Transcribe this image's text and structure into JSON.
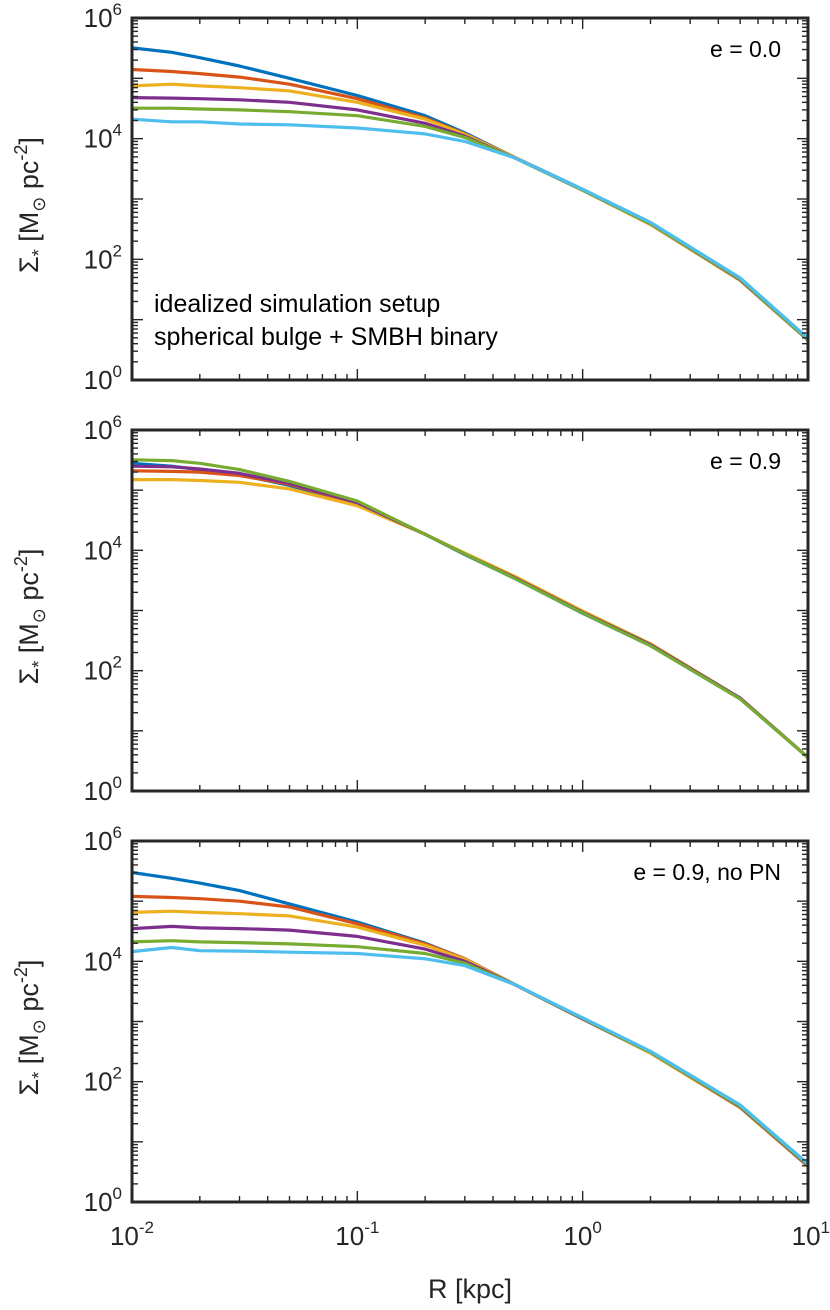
{
  "figure": {
    "xlabel": "R [kpc]",
    "ylabel_symbol": "Σ",
    "ylabel_sub": "*",
    "ylabel_open": " [M",
    "ylabel_sun": "⊙",
    "ylabel_unit": " pc",
    "ylabel_exp": "-2",
    "ylabel_close": "]"
  },
  "chart_data": [
    {
      "type": "line",
      "title": "",
      "annotation": "e = 0.0",
      "text_lines": [
        "idealized simulation setup",
        "spherical bulge + SMBH binary"
      ],
      "xscale": "log",
      "yscale": "log",
      "xlim": [
        0.01,
        10
      ],
      "ylim": [
        1,
        1000000
      ],
      "xlabel": "R [kpc]",
      "ylabel": "Σ* [M⊙ pc^-2]",
      "x_ticks": [
        {
          "base": "10",
          "exp": "-2",
          "value": 0.01
        },
        {
          "base": "10",
          "exp": "-1",
          "value": 0.1
        },
        {
          "base": "10",
          "exp": "0",
          "value": 1
        },
        {
          "base": "10",
          "exp": "1",
          "value": 10
        }
      ],
      "y_ticks": [
        {
          "base": "10",
          "exp": "0",
          "value": 1
        },
        {
          "base": "10",
          "exp": "2",
          "value": 100
        },
        {
          "base": "10",
          "exp": "4",
          "value": 10000
        },
        {
          "base": "10",
          "exp": "6",
          "value": 1000000
        }
      ],
      "x": [
        0.01,
        0.015,
        0.02,
        0.03,
        0.05,
        0.1,
        0.2,
        0.3,
        0.5,
        1,
        2,
        5,
        10
      ],
      "series": [
        {
          "name": "blue",
          "color": "#0072BD",
          "values": [
            320000,
            270000,
            220000,
            160000,
            100000,
            52000,
            24000,
            12500,
            4900,
            1450,
            390,
            45,
            4.6
          ]
        },
        {
          "name": "orange",
          "color": "#D95319",
          "values": [
            140000,
            130000,
            120000,
            105000,
            80000,
            46000,
            22000,
            12000,
            4900,
            1400,
            380,
            45,
            4.6
          ]
        },
        {
          "name": "yellow",
          "color": "#EDB120",
          "values": [
            75000,
            80000,
            75000,
            70000,
            62000,
            40000,
            21000,
            11800,
            4900,
            1400,
            380,
            45,
            4.6
          ]
        },
        {
          "name": "purple",
          "color": "#7E2F8E",
          "values": [
            48000,
            47000,
            46000,
            44000,
            40000,
            30000,
            18000,
            11000,
            4800,
            1400,
            390,
            46,
            4.6
          ]
        },
        {
          "name": "green",
          "color": "#77AC30",
          "values": [
            32000,
            32000,
            31000,
            30000,
            28000,
            24000,
            16000,
            10500,
            4800,
            1400,
            390,
            47,
            4.6
          ]
        },
        {
          "name": "cyan",
          "color": "#4DBEEE",
          "values": [
            21000,
            19000,
            19000,
            17500,
            17000,
            15000,
            12000,
            9000,
            4800,
            1450,
            410,
            49,
            4.9
          ]
        }
      ]
    },
    {
      "type": "line",
      "title": "",
      "annotation": "e = 0.9",
      "xscale": "log",
      "yscale": "log",
      "xlim": [
        0.01,
        10
      ],
      "ylim": [
        1,
        1000000
      ],
      "xlabel": "",
      "ylabel": "Σ* [M⊙ pc^-2]",
      "x_ticks": [],
      "y_ticks": [
        {
          "base": "10",
          "exp": "0",
          "value": 1
        },
        {
          "base": "10",
          "exp": "2",
          "value": 100
        },
        {
          "base": "10",
          "exp": "4",
          "value": 10000
        },
        {
          "base": "10",
          "exp": "6",
          "value": 1000000
        }
      ],
      "x": [
        0.01,
        0.015,
        0.02,
        0.03,
        0.05,
        0.1,
        0.2,
        0.3,
        0.5,
        1,
        2,
        5,
        10
      ],
      "series": [
        {
          "name": "blue",
          "color": "#0072BD",
          "values": [
            280000,
            250000,
            220000,
            180000,
            120000,
            58000,
            18500,
            8500,
            3400,
            900,
            260,
            34,
            3.6
          ]
        },
        {
          "name": "orange",
          "color": "#D95319",
          "values": [
            210000,
            205000,
            200000,
            175000,
            125000,
            60000,
            18500,
            8700,
            3500,
            930,
            270,
            35,
            3.6
          ]
        },
        {
          "name": "yellow",
          "color": "#EDB120",
          "values": [
            150000,
            150000,
            145000,
            135000,
            105000,
            55000,
            18500,
            9000,
            3700,
            980,
            280,
            35,
            3.6
          ]
        },
        {
          "name": "purple",
          "color": "#7E2F8E",
          "values": [
            250000,
            245000,
            225000,
            190000,
            130000,
            62000,
            18500,
            8700,
            3500,
            930,
            270,
            35,
            3.6
          ]
        },
        {
          "name": "green",
          "color": "#77AC30",
          "values": [
            320000,
            310000,
            280000,
            220000,
            140000,
            66000,
            18500,
            8700,
            3400,
            910,
            260,
            34,
            3.6
          ]
        }
      ]
    },
    {
      "type": "line",
      "title": "",
      "annotation": "e = 0.9, no PN",
      "xscale": "log",
      "yscale": "log",
      "xlim": [
        0.01,
        10
      ],
      "ylim": [
        1,
        1000000
      ],
      "xlabel": "R [kpc]",
      "ylabel": "Σ* [M⊙ pc^-2]",
      "x_ticks": [
        {
          "base": "10",
          "exp": "-2",
          "value": 0.01
        },
        {
          "base": "10",
          "exp": "-1",
          "value": 0.1
        },
        {
          "base": "10",
          "exp": "0",
          "value": 1
        },
        {
          "base": "10",
          "exp": "1",
          "value": 10
        }
      ],
      "y_ticks": [
        {
          "base": "10",
          "exp": "0",
          "value": 1
        },
        {
          "base": "10",
          "exp": "2",
          "value": 100
        },
        {
          "base": "10",
          "exp": "4",
          "value": 10000
        },
        {
          "base": "10",
          "exp": "6",
          "value": 1000000
        }
      ],
      "x": [
        0.01,
        0.015,
        0.02,
        0.03,
        0.05,
        0.1,
        0.2,
        0.3,
        0.5,
        1,
        2,
        5,
        10
      ],
      "series": [
        {
          "name": "blue",
          "color": "#0072BD",
          "values": [
            300000,
            240000,
            200000,
            150000,
            90000,
            45000,
            20000,
            11000,
            4100,
            1100,
            300,
            38,
            4.0
          ]
        },
        {
          "name": "orange",
          "color": "#D95319",
          "values": [
            120000,
            115000,
            110000,
            100000,
            80000,
            42000,
            19500,
            11000,
            4100,
            1100,
            300,
            37,
            3.9
          ]
        },
        {
          "name": "yellow",
          "color": "#EDB120",
          "values": [
            65000,
            68000,
            65000,
            62000,
            57000,
            37000,
            18500,
            10800,
            4100,
            1100,
            300,
            37,
            3.9
          ]
        },
        {
          "name": "purple",
          "color": "#7E2F8E",
          "values": [
            35000,
            38000,
            36000,
            35000,
            33000,
            26000,
            16000,
            10000,
            4100,
            1100,
            310,
            38,
            4.0
          ]
        },
        {
          "name": "green",
          "color": "#77AC30",
          "values": [
            21000,
            22000,
            21000,
            20500,
            19500,
            17500,
            13500,
            9300,
            4100,
            1120,
            310,
            39,
            4.1
          ]
        },
        {
          "name": "cyan",
          "color": "#4DBEEE",
          "values": [
            14500,
            17000,
            15000,
            14800,
            14200,
            13500,
            11000,
            8500,
            4100,
            1150,
            320,
            41,
            4.3
          ]
        }
      ]
    }
  ]
}
